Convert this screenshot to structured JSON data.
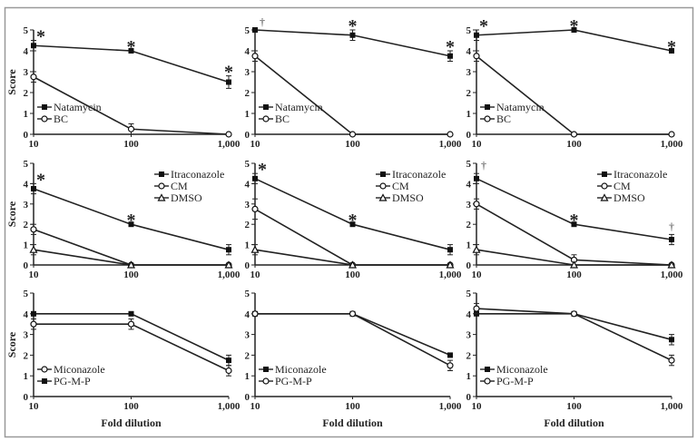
{
  "chart_data": {
    "type": "line",
    "ylabel": "Score",
    "xlabel": "Fold dilution",
    "x": [
      10,
      100,
      1000
    ],
    "x_tick_labels": [
      "10",
      "100",
      "1,000"
    ],
    "y_ticks": [
      0,
      1,
      2,
      3,
      4,
      5
    ],
    "ylim": [
      0,
      5
    ],
    "xscale": "log",
    "grid": false,
    "panels": [
      {
        "legend_position": "bottom-left",
        "series": [
          {
            "name": "Natamycin",
            "marker": "filled-square",
            "values": [
              4.25,
              4,
              2.5
            ],
            "errors": [
              0.25,
              0,
              0.3
            ]
          },
          {
            "name": "BC",
            "marker": "open-circle",
            "values": [
              2.75,
              0.25,
              0
            ],
            "errors": [
              0.25,
              0.25,
              0
            ]
          }
        ],
        "annotations": [
          "*",
          "*",
          "*"
        ]
      },
      {
        "legend_position": "bottom-left",
        "series": [
          {
            "name": "Natamycin",
            "marker": "filled-square",
            "values": [
              5,
              4.75,
              3.75
            ],
            "errors": [
              0,
              0.25,
              0.25
            ]
          },
          {
            "name": "BC",
            "marker": "open-circle",
            "values": [
              3.75,
              0,
              0
            ],
            "errors": [
              0.25,
              0,
              0
            ]
          }
        ],
        "annotations": [
          "†",
          "*",
          "*"
        ]
      },
      {
        "legend_position": "bottom-left",
        "series": [
          {
            "name": "Natamycin",
            "marker": "filled-square",
            "values": [
              4.75,
              5,
              4
            ],
            "errors": [
              0.25,
              0,
              0
            ]
          },
          {
            "name": "BC",
            "marker": "open-circle",
            "values": [
              3.75,
              0,
              0
            ],
            "errors": [
              0.25,
              0,
              0
            ]
          }
        ],
        "annotations": [
          "*",
          "*",
          "*"
        ]
      },
      {
        "legend_position": "top-right",
        "series": [
          {
            "name": "Itraconazole",
            "marker": "filled-square",
            "values": [
              3.75,
              2,
              0.75
            ],
            "errors": [
              0.25,
              0,
              0.25
            ]
          },
          {
            "name": "CM",
            "marker": "open-circle",
            "values": [
              1.75,
              0,
              0
            ],
            "errors": [
              0.25,
              0,
              0
            ]
          },
          {
            "name": "DMSO",
            "marker": "open-triangle",
            "values": [
              0.75,
              0,
              0
            ],
            "errors": [
              0.25,
              0,
              0
            ]
          }
        ],
        "annotations": [
          "*",
          "*",
          ""
        ]
      },
      {
        "legend_position": "top-right",
        "series": [
          {
            "name": "Itraconazole",
            "marker": "filled-square",
            "values": [
              4.25,
              2,
              0.75
            ],
            "errors": [
              0.25,
              0,
              0.25
            ]
          },
          {
            "name": "CM",
            "marker": "open-circle",
            "values": [
              2.75,
              0,
              0
            ],
            "errors": [
              0.5,
              0,
              0
            ]
          },
          {
            "name": "DMSO",
            "marker": "open-triangle",
            "values": [
              0.75,
              0,
              0
            ],
            "errors": [
              0.25,
              0,
              0
            ]
          }
        ],
        "annotations": [
          "*",
          "*",
          ""
        ]
      },
      {
        "legend_position": "top-right",
        "series": [
          {
            "name": "Itraconazole",
            "marker": "filled-square",
            "values": [
              4.25,
              2,
              1.25
            ],
            "errors": [
              0.25,
              0,
              0.25
            ]
          },
          {
            "name": "CM",
            "marker": "open-circle",
            "values": [
              3,
              0.25,
              0
            ],
            "errors": [
              0.25,
              0.25,
              0
            ]
          },
          {
            "name": "DMSO",
            "marker": "open-triangle",
            "values": [
              0.75,
              0,
              0
            ],
            "errors": [
              0.25,
              0,
              0
            ]
          }
        ],
        "annotations": [
          "†",
          "*",
          "†"
        ]
      },
      {
        "legend_position": "bottom-left",
        "series": [
          {
            "name": "Miconazole",
            "marker": "open-circle",
            "values": [
              3.5,
              3.5,
              1.25
            ],
            "errors": [
              0.25,
              0.25,
              0.25
            ]
          },
          {
            "name": "PG-M-P",
            "marker": "filled-square",
            "values": [
              4,
              4,
              1.75
            ],
            "errors": [
              0,
              0,
              0.25
            ]
          }
        ],
        "annotations": [
          "",
          "",
          ""
        ]
      },
      {
        "legend_position": "bottom-left",
        "series": [
          {
            "name": "Miconazole",
            "marker": "filled-square",
            "values": [
              4,
              4,
              2
            ],
            "errors": [
              0,
              0,
              0
            ]
          },
          {
            "name": "PG-M-P",
            "marker": "open-circle",
            "values": [
              4,
              4,
              1.5
            ],
            "errors": [
              0,
              0,
              0.25
            ]
          }
        ],
        "annotations": [
          "",
          "",
          ""
        ]
      },
      {
        "legend_position": "bottom-left",
        "series": [
          {
            "name": "Miconazole",
            "marker": "filled-square",
            "values": [
              4,
              4,
              2.75
            ],
            "errors": [
              0,
              0,
              0.25
            ]
          },
          {
            "name": "PG-M-P",
            "marker": "open-circle",
            "values": [
              4.25,
              4,
              1.75
            ],
            "errors": [
              0.25,
              0,
              0.25
            ]
          }
        ],
        "annotations": [
          "",
          "",
          ""
        ]
      }
    ]
  }
}
